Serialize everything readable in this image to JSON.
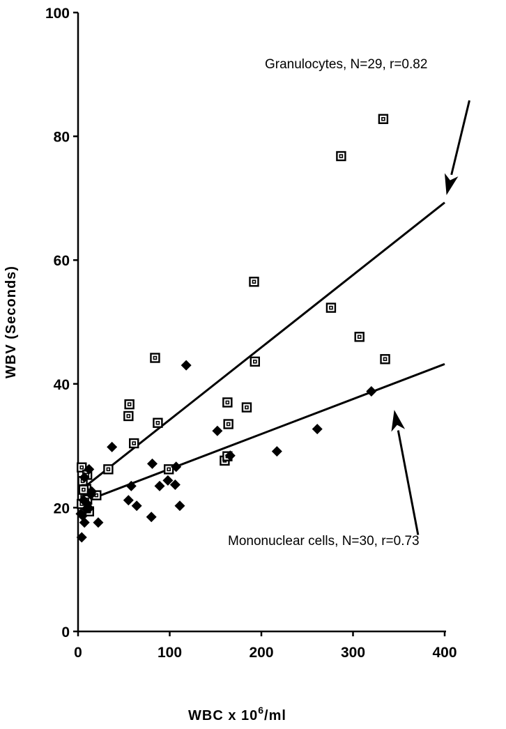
{
  "chart_data": {
    "type": "scatter",
    "title": "",
    "xlabel": "WBC x 10",
    "xlabel_sup": "6",
    "xlabel_unit": "/ml",
    "ylabel": "WBV (Seconds)",
    "xlim": [
      0,
      400
    ],
    "ylim": [
      0,
      100
    ],
    "xticks": [
      0,
      100,
      200,
      300,
      400
    ],
    "yticks": [
      0,
      20,
      40,
      60,
      80,
      100
    ],
    "grid": false,
    "series": [
      {
        "name": "Granulocytes",
        "marker": "open-square",
        "annotation": "Granulocytes,  N=29,  r=0.82",
        "fit": {
          "x": [
            0,
            400
          ],
          "y": [
            22.5,
            69.3
          ]
        },
        "points": [
          [
            333,
            82.8
          ],
          [
            287,
            76.8
          ],
          [
            192,
            56.5
          ],
          [
            276,
            52.3
          ],
          [
            307,
            47.6
          ],
          [
            335,
            44.0
          ],
          [
            84,
            44.2
          ],
          [
            193,
            43.6
          ],
          [
            56,
            36.7
          ],
          [
            163,
            37.0
          ],
          [
            184,
            36.2
          ],
          [
            55,
            34.8
          ],
          [
            87,
            33.7
          ],
          [
            164,
            33.5
          ],
          [
            61,
            30.4
          ],
          [
            160,
            27.6
          ],
          [
            163,
            28.3
          ],
          [
            33,
            26.2
          ],
          [
            99,
            26.2
          ],
          [
            4,
            26.5
          ],
          [
            10,
            25.3
          ],
          [
            5,
            24.3
          ],
          [
            20,
            22.0
          ],
          [
            9,
            23.0
          ],
          [
            8,
            22.3
          ],
          [
            10,
            21.3
          ],
          [
            4,
            20.6
          ],
          [
            12,
            19.4
          ],
          [
            6,
            22.9
          ]
        ]
      },
      {
        "name": "Mononuclear cells",
        "marker": "filled-diamond",
        "annotation": "Mononuclear cells,  N=30,  r=0.73",
        "fit": {
          "x": [
            0,
            400
          ],
          "y": [
            20.6,
            43.2
          ]
        },
        "points": [
          [
            118,
            43.0
          ],
          [
            320,
            38.8
          ],
          [
            152,
            32.4
          ],
          [
            261,
            32.7
          ],
          [
            37,
            29.8
          ],
          [
            217,
            29.1
          ],
          [
            81,
            27.1
          ],
          [
            166,
            28.4
          ],
          [
            107,
            26.6
          ],
          [
            98,
            24.4
          ],
          [
            58,
            23.5
          ],
          [
            89,
            23.5
          ],
          [
            106,
            23.7
          ],
          [
            55,
            21.2
          ],
          [
            64,
            20.3
          ],
          [
            111,
            20.3
          ],
          [
            80,
            18.5
          ],
          [
            22,
            17.6
          ],
          [
            7,
            17.6
          ],
          [
            4,
            15.2
          ],
          [
            12,
            26.2
          ],
          [
            15,
            22.6
          ],
          [
            6,
            21.2
          ],
          [
            9,
            19.8
          ],
          [
            3,
            19.0
          ],
          [
            12,
            19.9
          ],
          [
            7,
            24.9
          ],
          [
            14,
            22.1
          ],
          [
            5,
            18.7
          ],
          [
            10,
            20.6
          ]
        ]
      }
    ],
    "arrows": [
      {
        "target": "Granulocytes",
        "from": [
          427,
          85.8
        ],
        "to": [
          402,
          70.5
        ]
      },
      {
        "target": "Mononuclear cells",
        "from": [
          371,
          15.6
        ],
        "to": [
          345,
          35.8
        ]
      }
    ]
  }
}
